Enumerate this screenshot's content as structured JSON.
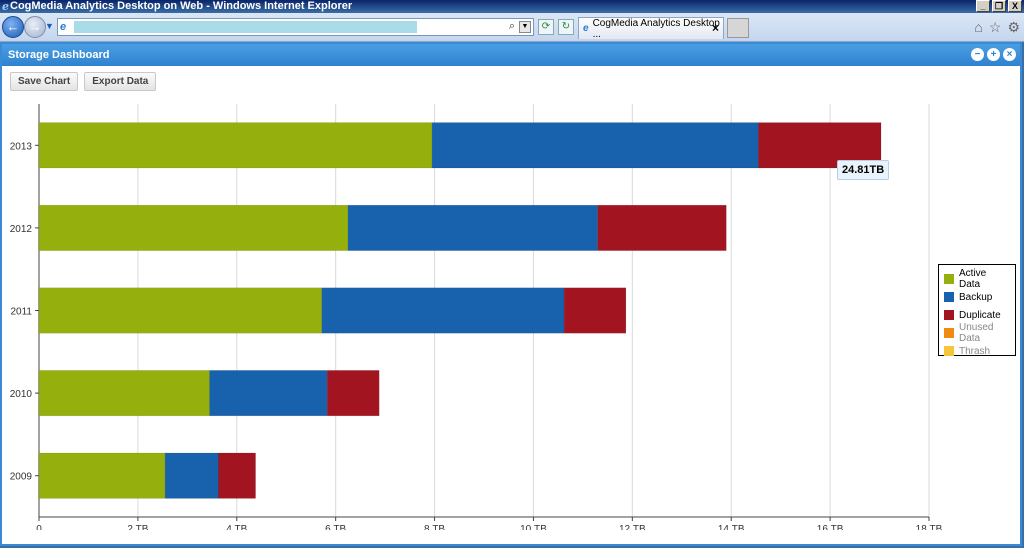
{
  "browser": {
    "window_title": "CogMedia Analytics Desktop on Web - Windows Internet Explorer",
    "tab_label": "CogMedia Analytics Desktop ...",
    "window_buttons": [
      "_",
      "❐",
      "X"
    ]
  },
  "app": {
    "title": "Storage Dashboard",
    "buttons": {
      "save": "Save Chart",
      "export": "Export Data"
    }
  },
  "tooltip": "24.81TB",
  "legend": [
    {
      "label": "Active Data",
      "color": "#95b00c",
      "muted": false
    },
    {
      "label": "Backup",
      "color": "#1861ad",
      "muted": false
    },
    {
      "label": "Duplicate",
      "color": "#a31421",
      "muted": false
    },
    {
      "label": "Unused Data",
      "color": "#f08a10",
      "muted": true
    },
    {
      "label": "Thrash",
      "color": "#f5c63a",
      "muted": true
    }
  ],
  "chart_data": {
    "type": "bar",
    "orientation": "horizontal",
    "stacked": true,
    "categories": [
      "2013",
      "2012",
      "2011",
      "2010",
      "2009"
    ],
    "series": [
      {
        "name": "Active Data",
        "color": "#95b00c",
        "values": [
          7.95,
          6.25,
          5.72,
          3.45,
          2.55
        ]
      },
      {
        "name": "Backup",
        "color": "#1861ad",
        "values": [
          6.6,
          5.05,
          4.9,
          2.38,
          1.08
        ]
      },
      {
        "name": "Duplicate",
        "color": "#a31421",
        "values": [
          2.48,
          2.6,
          1.25,
          1.05,
          0.75
        ]
      },
      {
        "name": "Unused Data",
        "color": "#f08a10",
        "values": [
          0,
          0,
          0,
          0,
          0
        ]
      },
      {
        "name": "Thrash",
        "color": "#f5c63a",
        "values": [
          0,
          0,
          0,
          0,
          0
        ]
      }
    ],
    "xlim": [
      0,
      18
    ],
    "x_ticks": [
      "0",
      "2.TB",
      "4.TB",
      "6.TB",
      "8.TB",
      "10.TB",
      "12.TB",
      "14.TB",
      "16.TB",
      "18.TB"
    ],
    "grid": true,
    "legend_position": "right"
  }
}
